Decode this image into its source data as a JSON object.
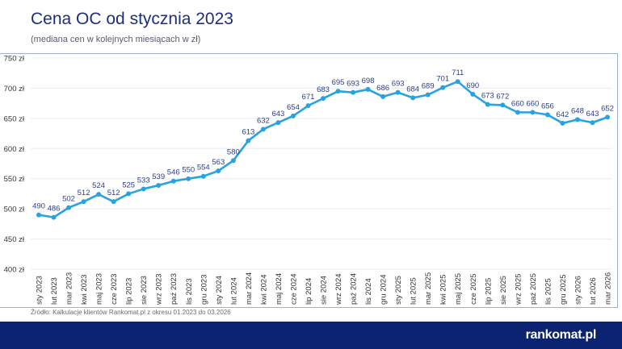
{
  "header": {
    "title": "Cena OC od stycznia 2023",
    "subtitle": "(mediana cen w kolejnych miesiącach w zł)"
  },
  "footer": {
    "source": "Źródło: Kalkulacje klientów Rankomat.pl z okresu 01.2023 do 03.2026",
    "logo": "rankomat.pl"
  },
  "colors": {
    "line": "#29a3e0",
    "label": "#2c3e8a",
    "footer_bg": "#0b2370",
    "grid": "#e8ecf2"
  },
  "chart_data": {
    "type": "line",
    "title": "Cena OC od stycznia 2023",
    "subtitle": "(mediana cen w kolejnych miesiącach w zł)",
    "categories": [
      "sty 2023",
      "lut 2023",
      "mar 2023",
      "kwi 2023",
      "maj 2023",
      "cze 2023",
      "lip 2023",
      "sie 2023",
      "wrz 2023",
      "paź 2023",
      "lis 2023",
      "gru 2023",
      "sty 2024",
      "lut 2024",
      "mar 2024",
      "kwi 2024",
      "maj 2024",
      "cze 2024",
      "lip 2024",
      "sie 2024",
      "wrz 2024",
      "paź 2024",
      "lis 2024",
      "gru 2024",
      "sty 2025",
      "lut 2025",
      "mar 2025",
      "kwi 2025",
      "maj 2025",
      "cze 2025",
      "lip 2025",
      "sie 2025",
      "wrz 2025",
      "paź 2025",
      "lis 2025",
      "gru 2025",
      "sty 2026",
      "lut 2026",
      "mar 2026"
    ],
    "values": [
      490,
      486,
      502,
      512,
      524,
      512,
      525,
      533,
      539,
      546,
      550,
      554,
      563,
      580,
      613,
      632,
      643,
      654,
      671,
      683,
      695,
      693,
      698,
      686,
      693,
      684,
      689,
      701,
      711,
      690,
      673,
      672,
      660,
      660,
      656,
      642,
      648,
      643,
      652
    ],
    "yticks": [
      "400 zł",
      "450 zł",
      "500 zł",
      "550 zł",
      "600 zł",
      "650 zł",
      "700 zł",
      "750 zł"
    ],
    "ylim": [
      400,
      750
    ],
    "grid": true,
    "legend": "none"
  }
}
